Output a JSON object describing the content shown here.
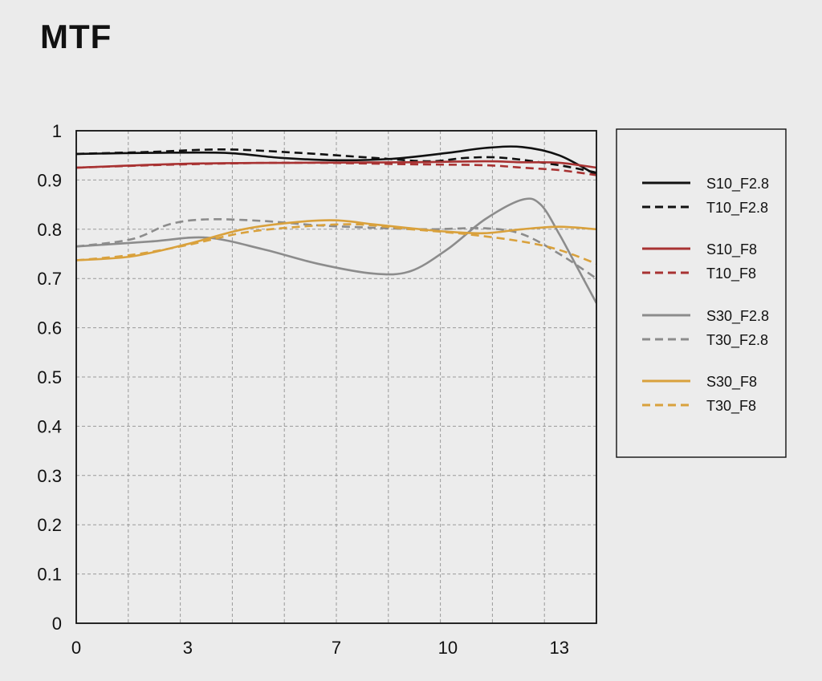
{
  "chart_data": {
    "type": "line",
    "title": "MTF",
    "xlabel": "",
    "ylabel": "",
    "xlim": [
      0,
      14
    ],
    "ylim": [
      0,
      1
    ],
    "grid": true,
    "legend_position": "right",
    "x_ticks": [
      "0",
      "3",
      "7",
      "10",
      "13"
    ],
    "x_tick_values": [
      0,
      3,
      7,
      10,
      13
    ],
    "y_ticks": [
      "0",
      "0.1",
      "0.2",
      "0.3",
      "0.4",
      "0.5",
      "0.6",
      "0.7",
      "0.8",
      "0.9",
      "1"
    ],
    "y_tick_values": [
      0,
      0.1,
      0.2,
      0.3,
      0.4,
      0.5,
      0.6,
      0.7,
      0.8,
      0.9,
      1
    ],
    "series": [
      {
        "name": "S10_F2.8",
        "color": "#111111",
        "dashed": false,
        "points": [
          [
            0,
            0.953
          ],
          [
            2,
            0.955
          ],
          [
            4,
            0.955
          ],
          [
            5.5,
            0.945
          ],
          [
            7,
            0.94
          ],
          [
            8.5,
            0.943
          ],
          [
            10,
            0.955
          ],
          [
            11,
            0.965
          ],
          [
            12,
            0.967
          ],
          [
            13,
            0.95
          ],
          [
            14,
            0.91
          ]
        ]
      },
      {
        "name": "T10_F2.8",
        "color": "#111111",
        "dashed": true,
        "points": [
          [
            0,
            0.953
          ],
          [
            2,
            0.957
          ],
          [
            4,
            0.962
          ],
          [
            6,
            0.955
          ],
          [
            8,
            0.945
          ],
          [
            9.5,
            0.938
          ],
          [
            10.5,
            0.945
          ],
          [
            11.5,
            0.945
          ],
          [
            13,
            0.93
          ],
          [
            14,
            0.915
          ]
        ]
      },
      {
        "name": "S10_F8",
        "color": "#a83232",
        "dashed": false,
        "points": [
          [
            0,
            0.925
          ],
          [
            3,
            0.933
          ],
          [
            6,
            0.935
          ],
          [
            9,
            0.936
          ],
          [
            11,
            0.938
          ],
          [
            12,
            0.936
          ],
          [
            13,
            0.935
          ],
          [
            14,
            0.925
          ]
        ]
      },
      {
        "name": "T10_F8",
        "color": "#a83232",
        "dashed": true,
        "points": [
          [
            0,
            0.925
          ],
          [
            3,
            0.932
          ],
          [
            6,
            0.935
          ],
          [
            9,
            0.932
          ],
          [
            11,
            0.93
          ],
          [
            12,
            0.925
          ],
          [
            13,
            0.92
          ],
          [
            14,
            0.91
          ]
        ]
      },
      {
        "name": "S30_F2.8",
        "color": "#8c8c8c",
        "dashed": false,
        "points": [
          [
            0,
            0.765
          ],
          [
            2,
            0.775
          ],
          [
            3.5,
            0.783
          ],
          [
            5,
            0.76
          ],
          [
            6.5,
            0.73
          ],
          [
            8,
            0.71
          ],
          [
            9,
            0.715
          ],
          [
            10,
            0.76
          ],
          [
            11,
            0.82
          ],
          [
            12,
            0.86
          ],
          [
            12.5,
            0.85
          ],
          [
            13,
            0.79
          ],
          [
            13.5,
            0.72
          ],
          [
            14,
            0.65
          ]
        ]
      },
      {
        "name": "T30_F2.8",
        "color": "#8c8c8c",
        "dashed": true,
        "points": [
          [
            0,
            0.765
          ],
          [
            1.5,
            0.78
          ],
          [
            2.5,
            0.81
          ],
          [
            3.5,
            0.82
          ],
          [
            5,
            0.817
          ],
          [
            6.5,
            0.808
          ],
          [
            8,
            0.803
          ],
          [
            9.5,
            0.8
          ],
          [
            11,
            0.802
          ],
          [
            12,
            0.79
          ],
          [
            13,
            0.75
          ],
          [
            14,
            0.7
          ]
        ]
      },
      {
        "name": "S30_F8",
        "color": "#d9a13c",
        "dashed": false,
        "points": [
          [
            0,
            0.737
          ],
          [
            1.5,
            0.745
          ],
          [
            3,
            0.77
          ],
          [
            4.5,
            0.8
          ],
          [
            6,
            0.815
          ],
          [
            7,
            0.818
          ],
          [
            8,
            0.81
          ],
          [
            9,
            0.802
          ],
          [
            10,
            0.795
          ],
          [
            11,
            0.792
          ],
          [
            12,
            0.8
          ],
          [
            13,
            0.805
          ],
          [
            14,
            0.8
          ]
        ]
      },
      {
        "name": "T30_F8",
        "color": "#d9a13c",
        "dashed": true,
        "points": [
          [
            0,
            0.737
          ],
          [
            1.5,
            0.748
          ],
          [
            3,
            0.768
          ],
          [
            4.5,
            0.793
          ],
          [
            6,
            0.805
          ],
          [
            7.5,
            0.81
          ],
          [
            9,
            0.8
          ],
          [
            10.5,
            0.79
          ],
          [
            12,
            0.775
          ],
          [
            13,
            0.758
          ],
          [
            14,
            0.73
          ]
        ]
      }
    ]
  }
}
